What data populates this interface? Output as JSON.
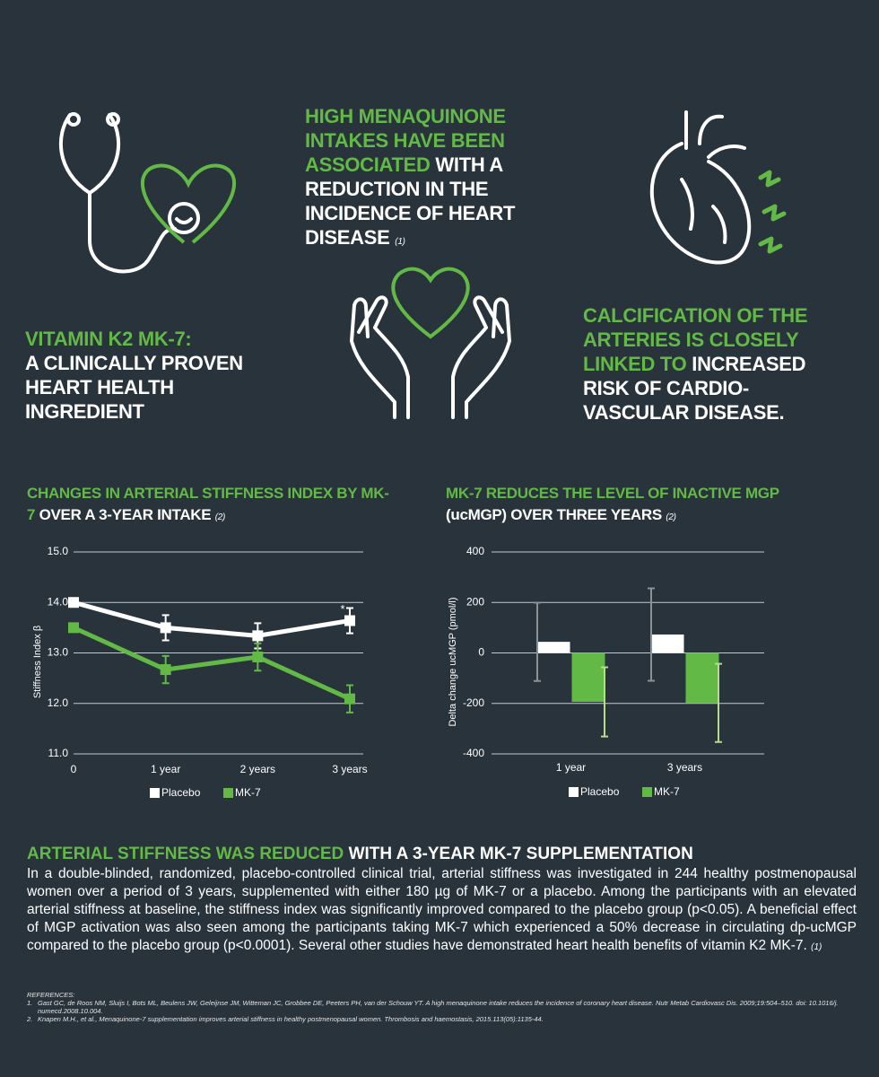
{
  "intro": {
    "highlight": "VITAMIN K2 MK-7:",
    "text": "A CLINICALLY PROVEN HEART HEALTH INGREDIENT"
  },
  "menaquinone": {
    "highlight": "HIGH MENAQUINONE INTAKES HAVE BEEN ASSOCIATED",
    "text": "WITH A REDUCTION IN THE INCIDENCE OF HEART DISEASE",
    "ref": "(1)"
  },
  "calcification": {
    "highlight": "CALCIFICATION OF THE ARTERIES IS CLOSELY LINKED TO",
    "text": "INCREASED RISK OF CARDIO-VASCULAR DISEASE."
  },
  "chart_data": [
    {
      "type": "line",
      "title_highlight": "CHANGES IN ARTERIAL STIFFNESS INDEX BY MK-7",
      "title": "OVER A 3-YEAR INTAKE",
      "title_ref": "(2)",
      "y_label": "Stiffness Index β",
      "categories": [
        "0",
        "1 year",
        "2 years",
        "3 years"
      ],
      "series": [
        {
          "name": "Placebo",
          "color": "#ffffff",
          "values": [
            14.0,
            13.5,
            13.34,
            13.64
          ],
          "errors": [
            null,
            0.25,
            0.25,
            0.25
          ]
        },
        {
          "name": "MK-7",
          "color": "#63b946",
          "values": [
            13.5,
            12.67,
            12.92,
            12.09
          ],
          "errors": [
            null,
            0.27,
            0.27,
            0.27
          ]
        }
      ],
      "annotation": "*",
      "ylim": [
        11,
        15
      ],
      "yticks": [
        {
          "value": 11,
          "label": "11.0"
        },
        {
          "value": 12,
          "label": "12.0"
        },
        {
          "value": 13,
          "label": "13.0"
        },
        {
          "value": 14,
          "label": "14.0"
        },
        {
          "value": 15,
          "label": "15.0"
        }
      ],
      "grid": true
    },
    {
      "type": "bar",
      "title_highlight": "MK-7 REDUCES THE LEVEL OF INACTIVE MGP",
      "title": "(ucMGP) OVER THREE YEARS",
      "title_ref": "(2)",
      "y_label": "Delta change ucMGP (pmol/l)",
      "categories": [
        "1 year",
        "3 years"
      ],
      "series": [
        {
          "name": "Placebo",
          "color": "#ffffff",
          "error_color": "#8d9296",
          "values": [
            44,
            73
          ],
          "errors": [
            155,
            183
          ]
        },
        {
          "name": "MK-7",
          "color": "#63b946",
          "error_color": "#b8dc8c",
          "values": [
            -194,
            -198
          ],
          "errors": [
            137,
            155
          ]
        }
      ],
      "ylim": [
        -400,
        400
      ],
      "yticks": [
        -400,
        -200,
        0,
        200,
        400
      ],
      "grid": true
    }
  ],
  "summary": {
    "highlight": "ARTERIAL STIFFNESS WAS REDUCED",
    "heading": "WITH A 3-YEAR MK-7 SUPPLEMENTATION",
    "text": "In a double-blinded, randomized, placebo-controlled clinical trial, arterial stiffness was investigated in 244 healthy postmenopausal women over a period of 3 years, supplemented with either 180 µg of MK-7 or a placebo. Among the participants with an elevated arterial stiffness at baseline, the stiffness index was significantly improved compared to the placebo group (p<0.05). A beneficial effect of MGP activation was also seen among the participants taking MK-7 which experienced a 50% decrease in circulating dp-ucMGP compared to the placebo group (p<0.0001). Several other studies have demonstrated heart health benefits of vitamin K2 MK-7.",
    "ref": "(1)"
  },
  "references": {
    "title": "REFERENCES:",
    "items": [
      {
        "number": "1.",
        "text": "Gast GC, de Roos NM, Sluijs I, Bots ML, Beulens JW, Geleijnse JM, Witteman JC, Grobbee DE, Peeters PH, van der Schouw YT. A high menaquinone intake reduces the incidence of coronary heart disease. Nutr Metab Cardiovasc Dis. 2009;19:504–510. doi: 10.1016/j. numecd.2008.10.004."
      },
      {
        "number": "2.",
        "text": "Knapen M.H., et al., Menaquinone-7 supplementation improves arterial stiffness in healthy postmenopausal women. Thrombosis and haemostasis, 2015.113(05):1135-44."
      }
    ]
  }
}
